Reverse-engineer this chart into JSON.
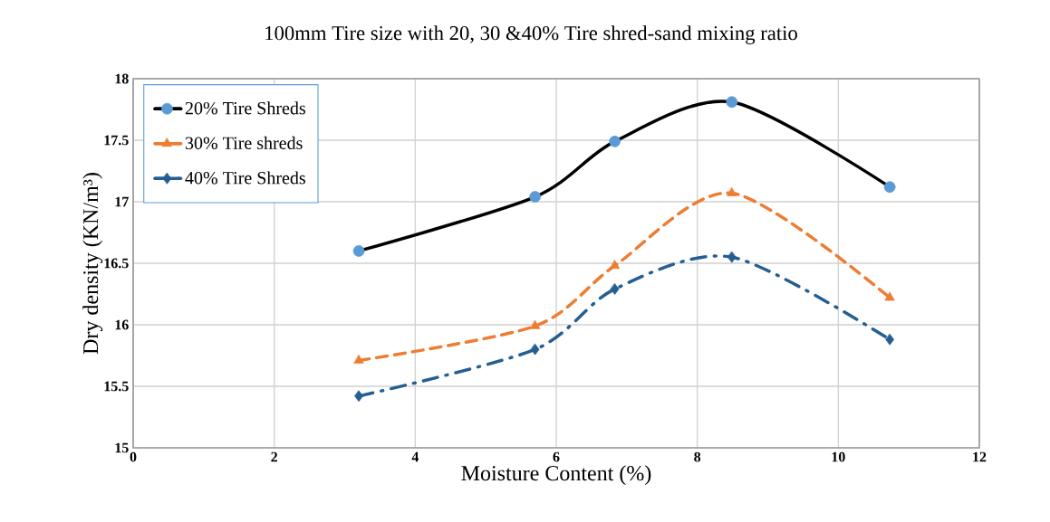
{
  "chart_data": {
    "type": "line",
    "title": "100mm Tire size with 20, 30 &40% Tire shred-sand mixing ratio",
    "xlabel": "Moisture Content  (%)",
    "ylabel": "Dry density (KN/m³)",
    "x": [
      3.2,
      5.7,
      6.83,
      8.49,
      10.73
    ],
    "series": [
      {
        "name": "20% Tire Shreds",
        "color": "#000000",
        "marker": "circle",
        "line_style": "solid",
        "values": [
          16.6,
          17.04,
          17.49,
          17.81,
          17.12
        ]
      },
      {
        "name": "30% Tire shreds",
        "color": "#ed7d31",
        "marker": "triangle",
        "line_style": "dashed",
        "values": [
          15.71,
          15.99,
          16.48,
          17.07,
          16.22
        ]
      },
      {
        "name": "40% Tire Shreds",
        "color": "#255e91",
        "marker": "diamond",
        "line_style": "dashdot",
        "values": [
          15.42,
          15.8,
          16.29,
          16.55,
          15.88
        ]
      }
    ],
    "xlim": [
      0,
      12
    ],
    "ylim": [
      15,
      18
    ],
    "xticks": [
      0,
      2,
      4,
      6,
      8,
      10,
      12
    ],
    "yticks": [
      15,
      15.5,
      16,
      16.5,
      17,
      17.5,
      18
    ],
    "grid": true,
    "legend": "top left"
  }
}
